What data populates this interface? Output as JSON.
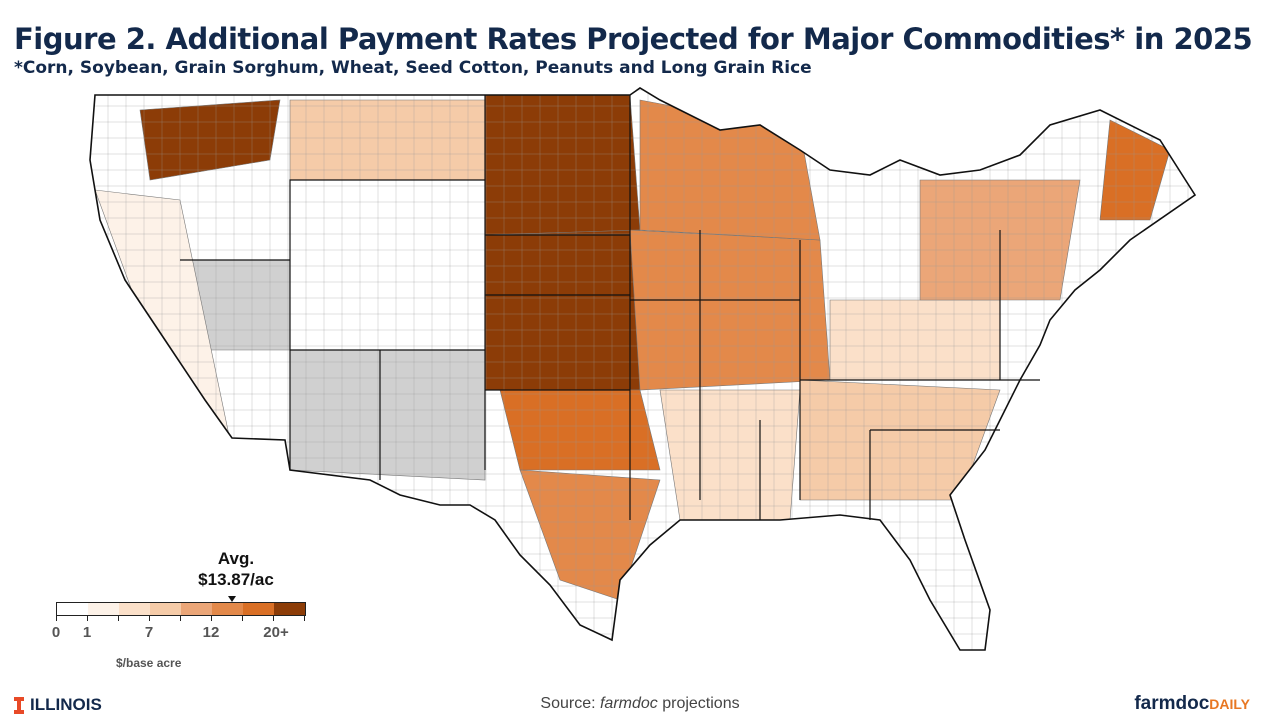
{
  "header": {
    "title": "Figure 2. Additional Payment Rates Projected for Major Commodities* in 2025",
    "subtitle": "*Corn, Soybean, Grain Sorghum, Wheat, Seed Cotton, Peanuts and Long Grain Rice"
  },
  "legend": {
    "avg_label": "Avg.",
    "avg_value": "$13.87/ac",
    "avg_marker_value": 13.87,
    "bins": [
      "#ffffff",
      "#fdf2e8",
      "#fbe0c9",
      "#f5cba8",
      "#eba678",
      "#e3894a",
      "#d96f25",
      "#8c3c07"
    ],
    "tick_labels": [
      "0",
      "1",
      "7",
      "12",
      "20+"
    ],
    "unit": "$/base acre",
    "no_data_color": "#d0d0d0"
  },
  "map": {
    "regions": [
      {
        "name": "northern-plains",
        "bin": 7
      },
      {
        "name": "central-plains",
        "bin": 7
      },
      {
        "name": "southern-plains",
        "bin": 6
      },
      {
        "name": "corn-belt",
        "bin": 5
      },
      {
        "name": "lake-states",
        "bin": 5
      },
      {
        "name": "pacific-northwest",
        "bin": 7
      },
      {
        "name": "northern-rockies",
        "bin": 3
      },
      {
        "name": "southwest",
        "bin": 8
      },
      {
        "name": "great-basin",
        "bin": 8
      },
      {
        "name": "california",
        "bin": 1
      },
      {
        "name": "delta",
        "bin": 2
      },
      {
        "name": "southeast",
        "bin": 3
      },
      {
        "name": "appalachia",
        "bin": 2
      },
      {
        "name": "northeast",
        "bin": 4
      },
      {
        "name": "maine",
        "bin": 6
      },
      {
        "name": "gulf-texas",
        "bin": 5
      }
    ]
  },
  "footer": {
    "university": "ILLINOIS",
    "source_prefix": "Source: ",
    "source_italic": "farmdoc",
    "source_suffix": " projections",
    "brand_main": "farmdoc",
    "brand_accent": "DAILY"
  }
}
